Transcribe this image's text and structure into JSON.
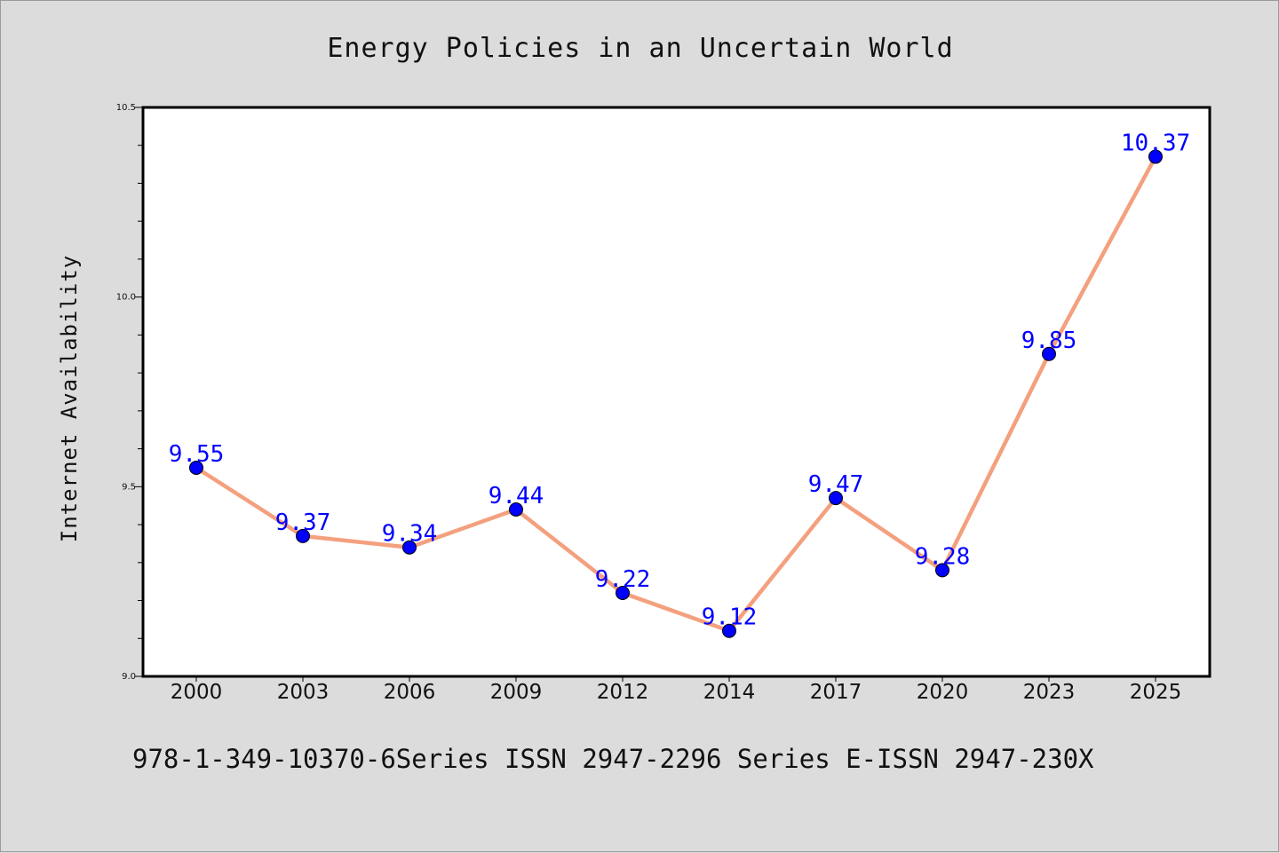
{
  "chart_data": {
    "type": "line",
    "title": "Energy Policies in an Uncertain World",
    "xlabel": "",
    "ylabel": "Internet Availability",
    "categories": [
      "2000",
      "2003",
      "2006",
      "2009",
      "2012",
      "2014",
      "2017",
      "2020",
      "2023",
      "2025"
    ],
    "series": [
      {
        "values": [
          9.55,
          9.37,
          9.34,
          9.44,
          9.22,
          9.12,
          9.47,
          9.28,
          9.85,
          10.37
        ],
        "line_color": "#f4a07e",
        "marker_color": "#0000ff"
      }
    ],
    "data_labels": [
      "9.55",
      "9.37",
      "9.34",
      "9.44",
      "9.22",
      "9.12",
      "9.47",
      "9.28",
      "9.85",
      "10.37"
    ],
    "ylim": [
      9.0,
      10.5
    ],
    "yticks": [
      "9.0",
      "9.5",
      "10.0",
      "10.5"
    ],
    "grid": false,
    "legend": "none"
  },
  "footer": "978-1-349-10370-6Series ISSN 2947-2296 Series E-ISSN 2947-230X",
  "colors": {
    "background": "#dcdcdc",
    "plot_area": "#ffffff",
    "line": "#f4a07e",
    "marker": "#0000ff",
    "data_label": "#0000ff"
  }
}
